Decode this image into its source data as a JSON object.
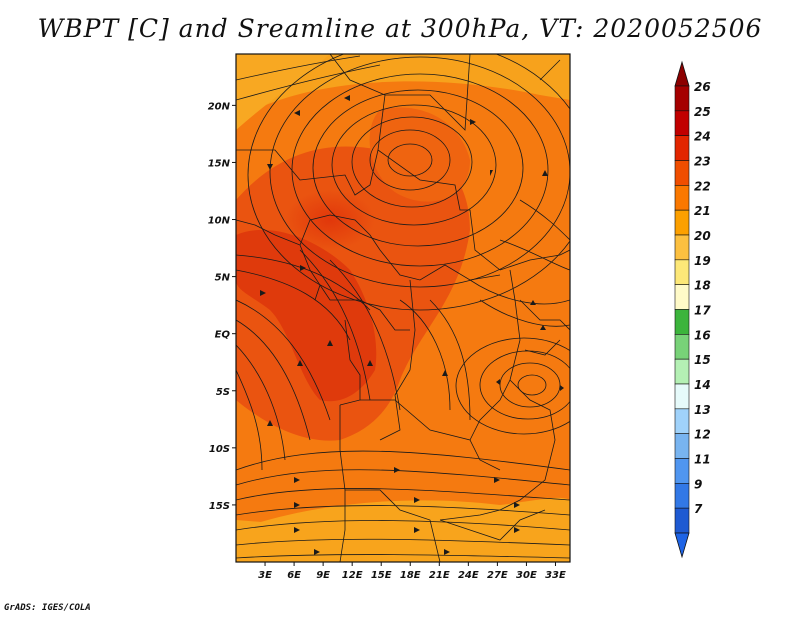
{
  "title": "WBPT [C] and Sreamline at 300hPa, VT: 2020052506",
  "credit": "GrADS: IGES/COLA",
  "map": {
    "lat_ticks": [
      {
        "value": 20,
        "label": "20N"
      },
      {
        "value": 15,
        "label": "15N"
      },
      {
        "value": 10,
        "label": "10N"
      },
      {
        "value": 5,
        "label": "5N"
      },
      {
        "value": 0,
        "label": "EQ"
      },
      {
        "value": -5,
        "label": "5S"
      },
      {
        "value": -10,
        "label": "10S"
      },
      {
        "value": -15,
        "label": "15S"
      }
    ],
    "lon_ticks": [
      {
        "value": 3,
        "label": "3E"
      },
      {
        "value": 6,
        "label": "6E"
      },
      {
        "value": 9,
        "label": "9E"
      },
      {
        "value": 12,
        "label": "12E"
      },
      {
        "value": 15,
        "label": "15E"
      },
      {
        "value": 18,
        "label": "18E"
      },
      {
        "value": 21,
        "label": "21E"
      },
      {
        "value": 24,
        "label": "24E"
      },
      {
        "value": 27,
        "label": "27E"
      },
      {
        "value": 30,
        "label": "30E"
      },
      {
        "value": 33,
        "label": "33E"
      }
    ],
    "lon_range": [
      0,
      34.5
    ],
    "lat_range": [
      -20,
      24.5
    ]
  },
  "colorbar": {
    "levels": [
      {
        "label": "26",
        "color": "#a50000"
      },
      {
        "label": "25",
        "color": "#c10000"
      },
      {
        "label": "24",
        "color": "#e22600"
      },
      {
        "label": "23",
        "color": "#f04e00"
      },
      {
        "label": "22",
        "color": "#fa7800"
      },
      {
        "label": "21",
        "color": "#fca000"
      },
      {
        "label": "20",
        "color": "#fcc040"
      },
      {
        "label": "19",
        "color": "#fde878"
      },
      {
        "label": "18",
        "color": "#fffac8"
      },
      {
        "label": "17",
        "color": "#3cb43c"
      },
      {
        "label": "16",
        "color": "#78d278"
      },
      {
        "label": "15",
        "color": "#b4f0b4"
      },
      {
        "label": "14",
        "color": "#e6fafa"
      },
      {
        "label": "13",
        "color": "#a0d2fa"
      },
      {
        "label": "12",
        "color": "#78b4f0"
      },
      {
        "label": "11",
        "color": "#5096f0"
      },
      {
        "label": "9",
        "color": "#3278e6"
      },
      {
        "label": "7",
        "color": "#1e5ad2"
      }
    ],
    "top_color": "#8c0000",
    "bottom_color": "#1e64e6"
  }
}
